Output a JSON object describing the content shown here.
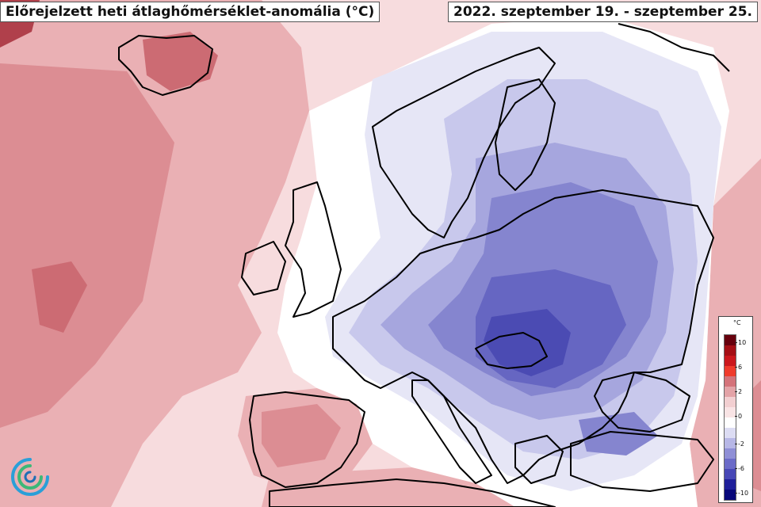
{
  "title": "Előrejelzett heti átlaghőmérséklet-anomália (°C)",
  "date_range": "2022. szeptember 19. - szeptember 25.",
  "legend": {
    "unit": "°C",
    "labels": [
      "10",
      "6",
      "2",
      "0",
      "-2",
      "-6",
      "-10"
    ],
    "colors": [
      "#67000d",
      "#a50f15",
      "#cb181d",
      "#ef3b2c",
      "#d4737a",
      "#e3a3a7",
      "#f2cfd1",
      "#f9e4e5",
      "#ffffff",
      "#dcdcf3",
      "#b7b7e6",
      "#8f8fd6",
      "#6b6bc8",
      "#4747b6",
      "#1f1f9a",
      "#08087a"
    ]
  },
  "map_colors": {
    "warm_1": "#f6d6d8",
    "warm_2": "#eab0b4",
    "warm_3": "#dc8d93",
    "warm_4": "#cc6b73",
    "warm_5": "#b0404b",
    "cold_1": "#e6e6f6",
    "cold_2": "#c8c8ec",
    "cold_3": "#a6a6de",
    "cold_4": "#8585cf",
    "cold_5": "#6666c2",
    "cold_6": "#4b4bb3"
  },
  "logo_icon": "swirl-logo-icon"
}
